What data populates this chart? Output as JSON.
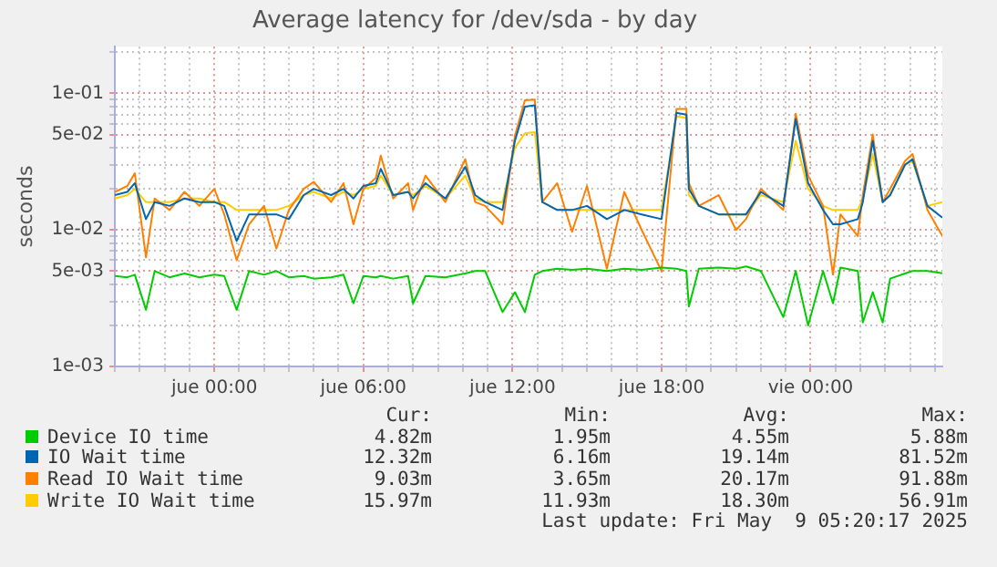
{
  "chart_data": {
    "type": "line",
    "title": "Average latency for /dev/sda - by day",
    "ylabel": "seconds",
    "log": "y",
    "grid": true,
    "legend": "bottom",
    "xlim": [
      "2025-05-07T20:00",
      "2025-05-09T05:18"
    ],
    "xticks": [
      {
        "value": "2025-05-07T20:00",
        "label": null
      },
      {
        "value": "2025-05-07T21:00",
        "label": null
      },
      {
        "value": "2025-05-07T22:00",
        "label": null
      },
      {
        "value": "2025-05-07T23:00",
        "label": null
      },
      {
        "value": "2025-05-08T00:00",
        "label": "jue 00:00"
      },
      {
        "value": "2025-05-08T01:00",
        "label": null
      },
      {
        "value": "2025-05-08T02:00",
        "label": null
      },
      {
        "value": "2025-05-08T03:00",
        "label": null
      },
      {
        "value": "2025-05-08T04:00",
        "label": null
      },
      {
        "value": "2025-05-08T05:00",
        "label": null
      },
      {
        "value": "2025-05-08T06:00",
        "label": "jue 06:00"
      },
      {
        "value": "2025-05-08T07:00",
        "label": null
      },
      {
        "value": "2025-05-08T08:00",
        "label": null
      },
      {
        "value": "2025-05-08T09:00",
        "label": null
      },
      {
        "value": "2025-05-08T10:00",
        "label": null
      },
      {
        "value": "2025-05-08T11:00",
        "label": null
      },
      {
        "value": "2025-05-08T12:00",
        "label": "jue 12:00"
      },
      {
        "value": "2025-05-08T13:00",
        "label": null
      },
      {
        "value": "2025-05-08T14:00",
        "label": null
      },
      {
        "value": "2025-05-08T15:00",
        "label": null
      },
      {
        "value": "2025-05-08T16:00",
        "label": null
      },
      {
        "value": "2025-05-08T17:00",
        "label": null
      },
      {
        "value": "2025-05-08T18:00",
        "label": "jue 18:00"
      },
      {
        "value": "2025-05-08T19:00",
        "label": null
      },
      {
        "value": "2025-05-08T20:00",
        "label": null
      },
      {
        "value": "2025-05-08T21:00",
        "label": null
      },
      {
        "value": "2025-05-08T22:00",
        "label": null
      },
      {
        "value": "2025-05-08T23:00",
        "label": null
      },
      {
        "value": "2025-05-09T00:00",
        "label": "vie 00:00"
      },
      {
        "value": "2025-05-09T01:00",
        "label": null
      },
      {
        "value": "2025-05-09T02:00",
        "label": null
      },
      {
        "value": "2025-05-09T03:00",
        "label": null
      },
      {
        "value": "2025-05-09T04:00",
        "label": null
      },
      {
        "value": "2025-05-09T05:00",
        "label": null
      }
    ],
    "ylim": [
      0.001,
      0.22
    ],
    "yticks": [
      {
        "value": 0.001,
        "label": "1e-03"
      },
      {
        "value": 0.002,
        "label": null
      },
      {
        "value": 0.003,
        "label": null
      },
      {
        "value": 0.004,
        "label": null
      },
      {
        "value": 0.005,
        "label": "5e-03"
      },
      {
        "value": 0.006,
        "label": null
      },
      {
        "value": 0.007,
        "label": null
      },
      {
        "value": 0.008,
        "label": null
      },
      {
        "value": 0.009,
        "label": null
      },
      {
        "value": 0.01,
        "label": "1e-02"
      },
      {
        "value": 0.02,
        "label": null
      },
      {
        "value": 0.03,
        "label": null
      },
      {
        "value": 0.04,
        "label": null
      },
      {
        "value": 0.05,
        "label": "5e-02"
      },
      {
        "value": 0.06,
        "label": null
      },
      {
        "value": 0.07,
        "label": null
      },
      {
        "value": 0.08,
        "label": null
      },
      {
        "value": 0.09,
        "label": null
      },
      {
        "value": 0.1,
        "label": "1e-01"
      },
      {
        "value": 0.2,
        "label": null
      }
    ],
    "x": [
      "2025-05-07T20:00",
      "2025-05-07T20:30",
      "2025-05-07T20:48",
      "2025-05-07T21:15",
      "2025-05-07T21:36",
      "2025-05-07T22:12",
      "2025-05-07T22:48",
      "2025-05-07T23:24",
      "2025-05-08T00:00",
      "2025-05-08T00:24",
      "2025-05-08T00:54",
      "2025-05-08T01:24",
      "2025-05-08T02:00",
      "2025-05-08T02:30",
      "2025-05-08T03:00",
      "2025-05-08T03:36",
      "2025-05-08T04:00",
      "2025-05-08T04:42",
      "2025-05-08T05:12",
      "2025-05-08T05:36",
      "2025-05-08T06:00",
      "2025-05-08T06:30",
      "2025-05-08T06:42",
      "2025-05-08T07:12",
      "2025-05-08T07:48",
      "2025-05-08T08:00",
      "2025-05-08T08:30",
      "2025-05-08T09:18",
      "2025-05-08T10:06",
      "2025-05-08T10:30",
      "2025-05-08T10:54",
      "2025-05-08T11:36",
      "2025-05-08T12:06",
      "2025-05-08T12:30",
      "2025-05-08T12:54",
      "2025-05-08T13:12",
      "2025-05-08T13:48",
      "2025-05-08T14:24",
      "2025-05-08T15:00",
      "2025-05-08T15:48",
      "2025-05-08T16:30",
      "2025-05-08T17:12",
      "2025-05-08T18:00",
      "2025-05-08T18:36",
      "2025-05-08T19:00",
      "2025-05-08T19:06",
      "2025-05-08T19:30",
      "2025-05-08T20:18",
      "2025-05-08T21:00",
      "2025-05-08T21:24",
      "2025-05-08T22:00",
      "2025-05-08T22:54",
      "2025-05-08T23:24",
      "2025-05-08T23:54",
      "2025-05-09T00:30",
      "2025-05-09T00:54",
      "2025-05-09T01:12",
      "2025-05-09T01:54",
      "2025-05-09T02:06",
      "2025-05-09T02:30",
      "2025-05-09T02:54",
      "2025-05-09T03:12",
      "2025-05-09T03:48",
      "2025-05-09T04:06",
      "2025-05-09T04:42",
      "2025-05-09T05:18"
    ],
    "series": [
      {
        "name": "Device IO time",
        "color": "#00cc00",
        "values": [
          0.0046,
          0.0045,
          0.0047,
          0.0026,
          0.005,
          0.0045,
          0.0048,
          0.0045,
          0.0047,
          0.0046,
          0.0026,
          0.005,
          0.0047,
          0.005,
          0.0045,
          0.0046,
          0.0044,
          0.0045,
          0.0047,
          0.0029,
          0.0046,
          0.0045,
          0.0046,
          0.0044,
          0.0046,
          0.0029,
          0.0046,
          0.0045,
          0.0048,
          0.005,
          0.005,
          0.0025,
          0.0035,
          0.0025,
          0.0047,
          0.005,
          0.0052,
          0.0051,
          0.0052,
          0.005,
          0.0052,
          0.0051,
          0.0053,
          0.0052,
          0.005,
          0.00275,
          0.0052,
          0.0053,
          0.0052,
          0.0054,
          0.005,
          0.0023,
          0.005,
          0.002,
          0.005,
          0.0029,
          0.0053,
          0.005,
          0.0021,
          0.0035,
          0.0021,
          0.0044,
          0.0048,
          0.005,
          0.005,
          0.00482
        ]
      },
      {
        "name": "IO Wait time",
        "color": "#0066b3",
        "values": [
          0.018,
          0.019,
          0.022,
          0.012,
          0.016,
          0.015,
          0.017,
          0.016,
          0.016,
          0.015,
          0.0083,
          0.013,
          0.013,
          0.013,
          0.012,
          0.018,
          0.02,
          0.018,
          0.02,
          0.017,
          0.021,
          0.022,
          0.028,
          0.018,
          0.019,
          0.017,
          0.022,
          0.017,
          0.029,
          0.018,
          0.016,
          0.014,
          0.045,
          0.08,
          0.082,
          0.016,
          0.014,
          0.014,
          0.015,
          0.012,
          0.014,
          0.013,
          0.012,
          0.072,
          0.07,
          0.02,
          0.015,
          0.013,
          0.013,
          0.013,
          0.019,
          0.015,
          0.065,
          0.022,
          0.014,
          0.011,
          0.011,
          0.012,
          0.016,
          0.045,
          0.016,
          0.018,
          0.03,
          0.033,
          0.015,
          0.01232
        ]
      },
      {
        "name": "Read IO Wait time",
        "color": "#ff8000",
        "values": [
          0.019,
          0.021,
          0.026,
          0.0063,
          0.017,
          0.014,
          0.019,
          0.015,
          0.02,
          0.013,
          0.006,
          0.011,
          0.015,
          0.0073,
          0.014,
          0.02,
          0.0225,
          0.016,
          0.022,
          0.011,
          0.02,
          0.024,
          0.035,
          0.017,
          0.022,
          0.014,
          0.025,
          0.016,
          0.033,
          0.016,
          0.015,
          0.011,
          0.049,
          0.089,
          0.09,
          0.016,
          0.022,
          0.0097,
          0.021,
          0.0052,
          0.019,
          0.01,
          0.005,
          0.077,
          0.077,
          0.022,
          0.015,
          0.018,
          0.01,
          0.012,
          0.02,
          0.014,
          0.071,
          0.025,
          0.015,
          0.0047,
          0.013,
          0.009,
          0.018,
          0.05,
          0.016,
          0.02,
          0.032,
          0.036,
          0.014,
          0.00903
        ]
      },
      {
        "name": "Write IO Wait time",
        "color": "#ffcc00",
        "values": [
          0.017,
          0.018,
          0.02,
          0.016,
          0.016,
          0.016,
          0.017,
          0.017,
          0.016,
          0.016,
          0.014,
          0.014,
          0.014,
          0.014,
          0.015,
          0.018,
          0.019,
          0.017,
          0.019,
          0.018,
          0.02,
          0.021,
          0.025,
          0.018,
          0.019,
          0.018,
          0.021,
          0.017,
          0.025,
          0.017,
          0.016,
          0.016,
          0.04,
          0.051,
          0.052,
          0.016,
          0.014,
          0.014,
          0.014,
          0.014,
          0.014,
          0.014,
          0.014,
          0.068,
          0.066,
          0.018,
          0.015,
          0.013,
          0.013,
          0.013,
          0.018,
          0.016,
          0.045,
          0.02,
          0.015,
          0.014,
          0.014,
          0.014,
          0.017,
          0.036,
          0.016,
          0.018,
          0.03,
          0.032,
          0.015,
          0.01597
        ]
      }
    ],
    "annotations": [
      "Cur:",
      "Min:",
      "Avg:",
      "Max:",
      "4.82m",
      "1.95m",
      "4.55m",
      "5.88m",
      "12.32m",
      "6.16m",
      "19.14m",
      "81.52m",
      "9.03m",
      "3.65m",
      "20.17m",
      "91.88m",
      "15.97m",
      "11.93m",
      "18.30m",
      "56.91m",
      "Last update: Fri May  9 05:20:17 2025"
    ]
  }
}
